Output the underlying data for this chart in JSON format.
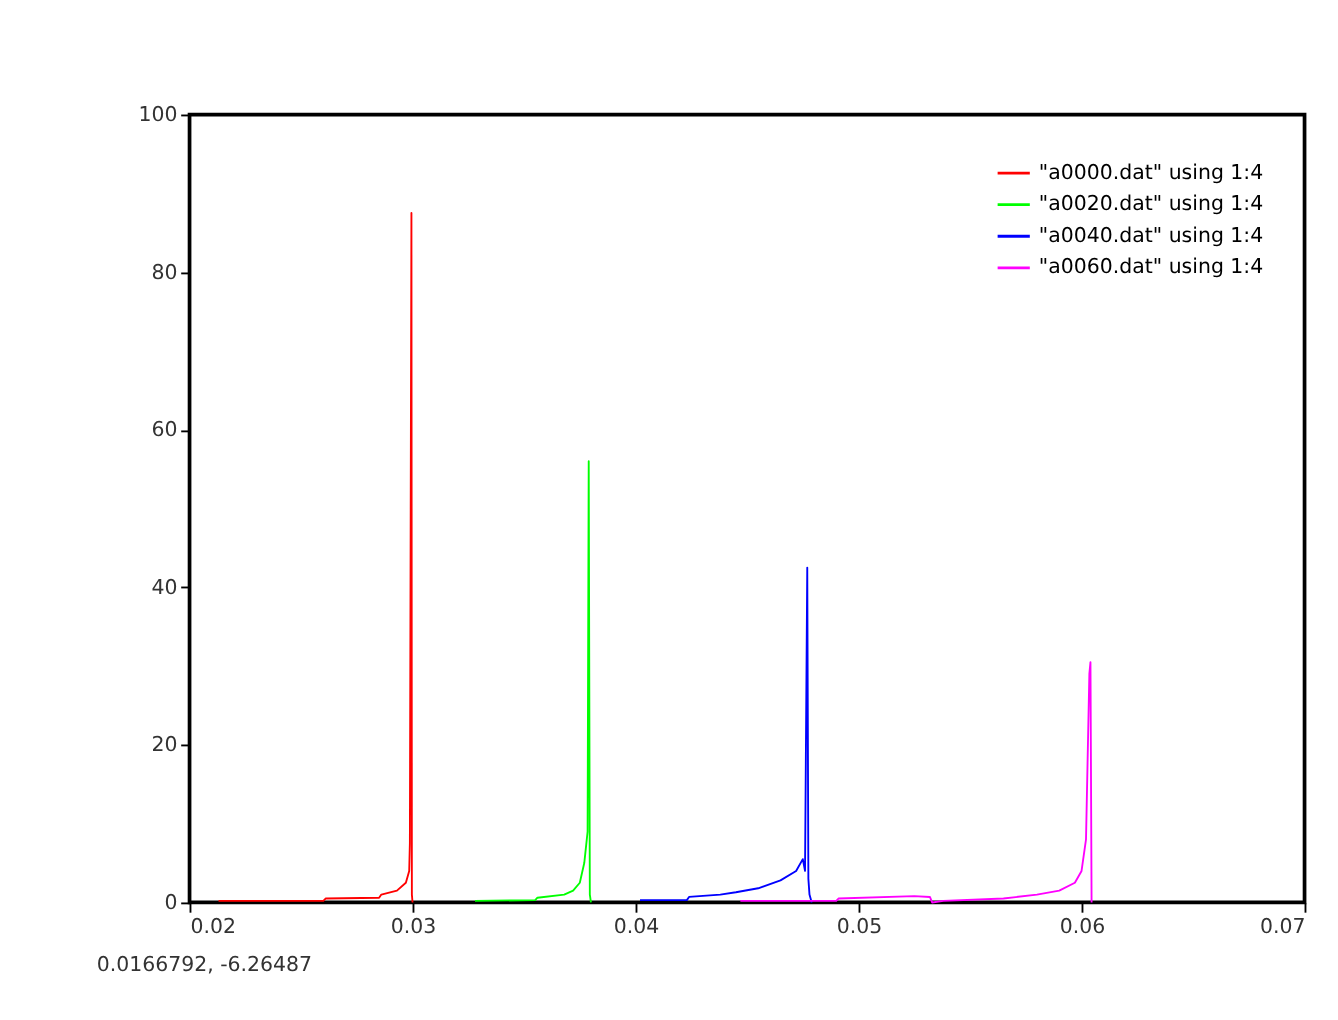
{
  "chart_data": {
    "type": "line",
    "xlim": [
      0.02,
      0.07
    ],
    "xticks": [
      0.02,
      0.03,
      0.04,
      0.05,
      0.06,
      0.07
    ],
    "ylim": [
      0,
      100
    ],
    "yticks": [
      0,
      20,
      40,
      60,
      80,
      100
    ],
    "grid": false,
    "legend": "top right",
    "marker": "none",
    "line_style": "solid",
    "annotations": [
      "0.0166792, -6.26487"
    ],
    "series": [
      {
        "name": "\"a0000.dat\" using 1:4",
        "color": "#ff0000",
        "x": [
          0.0213,
          0.026,
          0.0261,
          0.0285,
          0.0286,
          0.0293,
          0.0297,
          0.02985,
          0.02988,
          0.02995,
          0.02997,
          0.03
        ],
        "values": [
          0.2,
          0.2,
          0.5,
          0.6,
          1,
          1.5,
          2.5,
          4,
          7.5,
          87.5,
          1,
          0
        ]
      },
      {
        "name": "\"a0020.dat\" using 1:4",
        "color": "#00ff00",
        "x": [
          0.0328,
          0.0355,
          0.0356,
          0.0368,
          0.0372,
          0.0375,
          0.0377,
          0.03785,
          0.0379,
          0.03795,
          0.038
        ],
        "values": [
          0.2,
          0.3,
          0.6,
          1,
          1.5,
          2.5,
          5,
          9,
          56,
          1,
          0
        ]
      },
      {
        "name": "\"a0040.dat\" using 1:4",
        "color": "#0000ff",
        "x": [
          0.0402,
          0.0423,
          0.0424,
          0.0438,
          0.0445,
          0.0455,
          0.0465,
          0.0472,
          0.0475,
          0.0476,
          0.0477,
          0.04775,
          0.0478,
          0.0479
        ],
        "values": [
          0.3,
          0.3,
          0.7,
          1,
          1.3,
          1.8,
          2.8,
          4,
          5.5,
          4,
          42.5,
          3,
          1,
          0
        ]
      },
      {
        "name": "\"a0060.dat\" using 1:4",
        "color": "#ff00ff",
        "x": [
          0.0447,
          0.049,
          0.0491,
          0.0525,
          0.0532,
          0.0533,
          0.0538,
          0.0565,
          0.058,
          0.059,
          0.0597,
          0.06,
          0.0602,
          0.06035,
          0.0604,
          0.06045
        ],
        "values": [
          0.2,
          0.2,
          0.5,
          0.8,
          0.7,
          0,
          0.2,
          0.5,
          1,
          1.5,
          2.5,
          4,
          8,
          29,
          30.5,
          0
        ]
      }
    ]
  }
}
